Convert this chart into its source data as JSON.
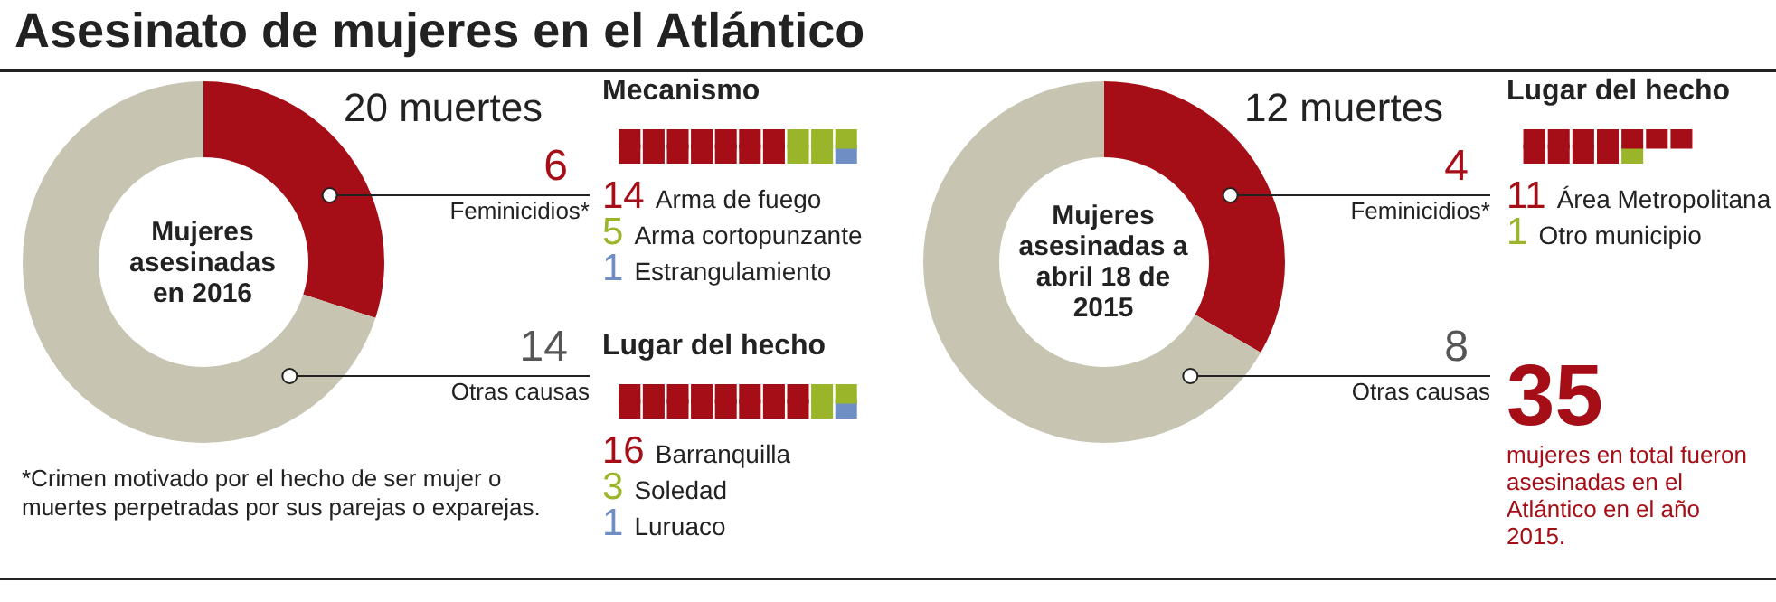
{
  "chart_data": [
    {
      "type": "donut",
      "title": "Asesinato de mujeres en el Atlántico",
      "subtitle": "Mujeres asesinadas en 2016",
      "categories": [
        "Feminicidios*",
        "Otras causas"
      ],
      "values": [
        6,
        14
      ],
      "colors": [
        "#a50e16",
        "#c7c5b1"
      ],
      "data_labels": true,
      "annotations": [
        "20 muertes",
        "*Crimen motivado por el hecho de ser mujer o muertes perpetradas por sus parejas o exparejas."
      ]
    },
    {
      "type": "other",
      "title": "Mecanismo",
      "categories": [
        "Arma de fuego",
        "Arma cortopunzante",
        "Estrangulamiento"
      ],
      "values": [
        14,
        5,
        1
      ],
      "colors": [
        "#a50e16",
        "#9ab52a",
        "#6f8fc4"
      ],
      "data_labels": true
    },
    {
      "type": "other",
      "title": "Lugar del hecho",
      "categories": [
        "Barranquilla",
        "Soledad",
        "Luruaco"
      ],
      "values": [
        16,
        3,
        1
      ],
      "colors": [
        "#a50e16",
        "#9ab52a",
        "#6f8fc4"
      ],
      "data_labels": true
    },
    {
      "type": "donut",
      "subtitle": "Mujeres asesinadas a abril 18 de 2015",
      "categories": [
        "Feminicidios*",
        "Otras causas"
      ],
      "values": [
        4,
        8
      ],
      "colors": [
        "#a50e16",
        "#c7c5b1"
      ],
      "data_labels": true,
      "annotations": [
        "12 muertes"
      ]
    },
    {
      "type": "other",
      "title": "Lugar del hecho",
      "categories": [
        "Área Metropolitana",
        "Otro municipio"
      ],
      "values": [
        11,
        1
      ],
      "colors": [
        "#a50e16",
        "#9ab52a"
      ],
      "data_labels": true
    },
    {
      "type": "other",
      "annotations": [
        "35",
        "mujeres en total fueron asesinadas en el Atlántico en el año 2015."
      ]
    }
  ]
}
